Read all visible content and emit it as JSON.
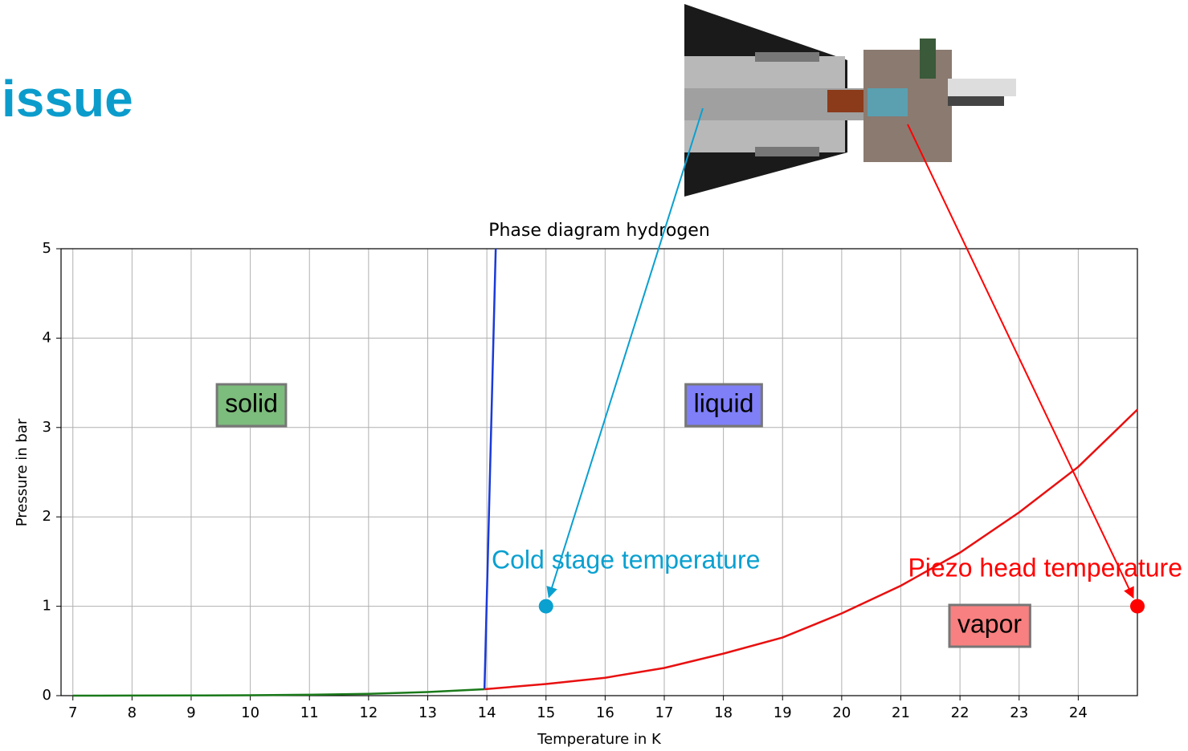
{
  "slide_title": "issue",
  "chart_data": {
    "type": "line",
    "title": "Phase diagram hydrogen",
    "x_label": "Temperature in K",
    "y_label": "Pressure in bar",
    "xlim": [
      6.8,
      25
    ],
    "ylim": [
      0,
      5
    ],
    "xticks": [
      7,
      8,
      9,
      10,
      11,
      12,
      13,
      14,
      15,
      16,
      17,
      18,
      19,
      20,
      21,
      22,
      23,
      24
    ],
    "yticks": [
      0,
      1,
      2,
      3,
      4,
      5
    ],
    "grid": true,
    "series": [
      {
        "color": "#1a7a1a",
        "x": [
          7,
          8,
          9,
          10,
          11,
          12,
          13,
          13.96
        ],
        "values": [
          0,
          0.001,
          0.002,
          0.005,
          0.01,
          0.02,
          0.04,
          0.072
        ]
      },
      {
        "color": "#1a3ad8",
        "x": [
          13.96,
          14.15
        ],
        "values": [
          0.072,
          5
        ]
      },
      {
        "color": "#e81010",
        "x": [
          13.96,
          15,
          16,
          17,
          18,
          19,
          20,
          21,
          22,
          23,
          24,
          25
        ],
        "values": [
          0.072,
          0.13,
          0.2,
          0.31,
          0.47,
          0.65,
          0.92,
          1.23,
          1.6,
          2.05,
          2.56,
          3.2
        ]
      }
    ],
    "points": [
      {
        "x": 15,
        "y": 1,
        "color": "#0aa0d0",
        "label": "Cold stage temperature"
      },
      {
        "x": 25,
        "y": 1,
        "color": "#ff0000",
        "label": "Piezo head temperature"
      }
    ],
    "regions": [
      {
        "text": "solid",
        "color": "#7cbc7c"
      },
      {
        "text": "liquid",
        "color": "#7f7ff8"
      },
      {
        "text": "vapor",
        "color": "#f88080"
      }
    ]
  }
}
